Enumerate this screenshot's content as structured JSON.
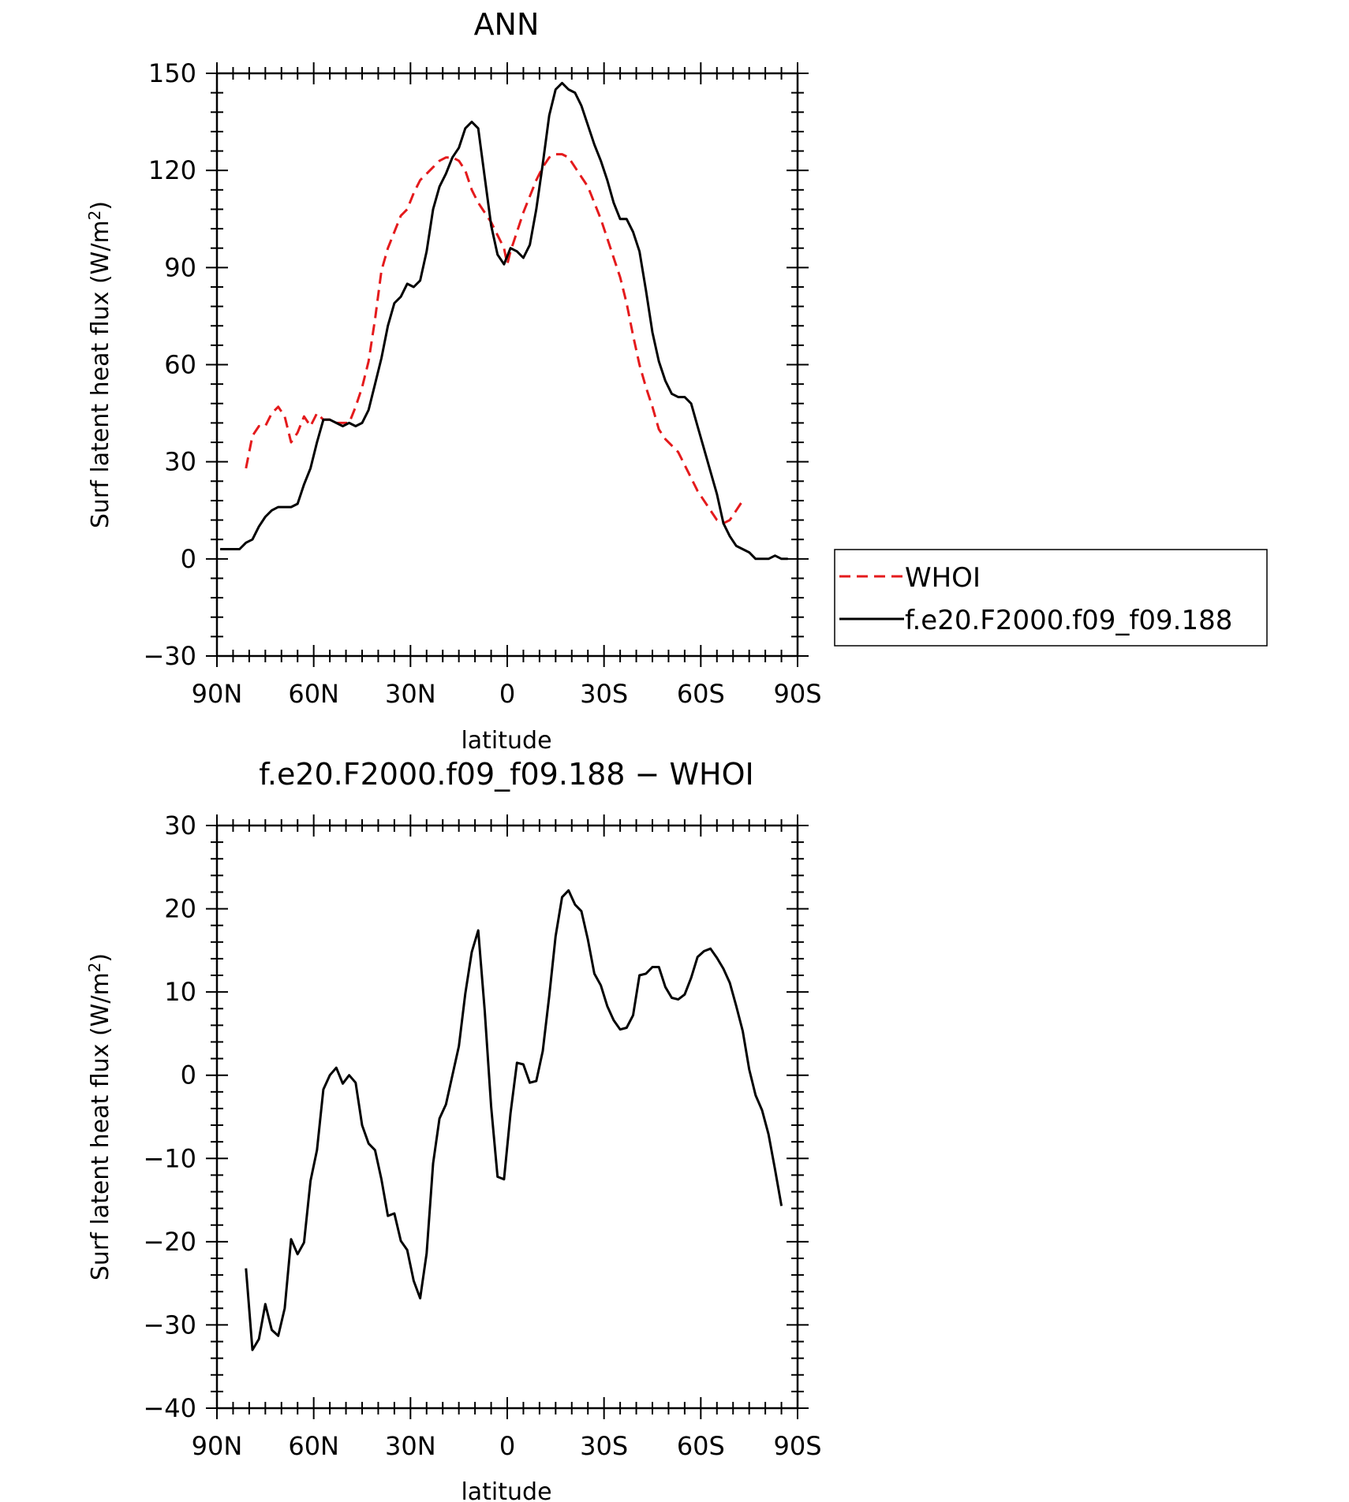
{
  "chart_data": [
    {
      "type": "line",
      "title": "ANN",
      "xlabel": "latitude",
      "ylabel": "Surf latent heat flux (W/m²)",
      "ylabel_main": "Surf latent heat flux (W/m",
      "ylabel_sup": "2",
      "ylabel_end": ")",
      "xlim": [
        90,
        -90
      ],
      "ylim": [
        -30,
        150
      ],
      "xticks": [
        90,
        60,
        30,
        0,
        -30,
        -60,
        -90
      ],
      "xtick_labels": [
        "90N",
        "60N",
        "30N",
        "0",
        "30S",
        "60S",
        "90S"
      ],
      "yticks": [
        -30,
        0,
        30,
        60,
        90,
        120,
        150
      ],
      "ytick_labels": [
        "−30",
        "0",
        "30",
        "60",
        "90",
        "120",
        "150"
      ],
      "legend": {
        "position": "right"
      },
      "series": [
        {
          "name": "WHOI",
          "color": "#e41a1c",
          "dash": "dashed",
          "points": [
            [
              81,
              28
            ],
            [
              79,
              38
            ],
            [
              77,
              41
            ],
            [
              75,
              41
            ],
            [
              73,
              45
            ],
            [
              71,
              47
            ],
            [
              69,
              44
            ],
            [
              67,
              36
            ],
            [
              65,
              39
            ],
            [
              63,
              44
            ],
            [
              61,
              41
            ],
            [
              59,
              45
            ],
            [
              57,
              43
            ],
            [
              55,
              43
            ],
            [
              53,
              42
            ],
            [
              51,
              42
            ],
            [
              49,
              42
            ],
            [
              47,
              47
            ],
            [
              45,
              53
            ],
            [
              43,
              61
            ],
            [
              41,
              74
            ],
            [
              39,
              89
            ],
            [
              37,
              96
            ],
            [
              35,
              101
            ],
            [
              33,
              106
            ],
            [
              31,
              108
            ],
            [
              29,
              113
            ],
            [
              27,
              117
            ],
            [
              25,
              119
            ],
            [
              23,
              121
            ],
            [
              21,
              123
            ],
            [
              19,
              124
            ],
            [
              17,
              124
            ],
            [
              15,
              123
            ],
            [
              13,
              120
            ],
            [
              11,
              114
            ],
            [
              9,
              110
            ],
            [
              7,
              107
            ],
            [
              5,
              104
            ],
            [
              3,
              100
            ],
            [
              1,
              96
            ],
            [
              0,
              91
            ],
            [
              -1,
              95
            ],
            [
              -3,
              101
            ],
            [
              -5,
              107
            ],
            [
              -7,
              112
            ],
            [
              -9,
              117
            ],
            [
              -11,
              121
            ],
            [
              -13,
              124
            ],
            [
              -15,
              125
            ],
            [
              -17,
              125
            ],
            [
              -19,
              124
            ],
            [
              -21,
              121
            ],
            [
              -23,
              118
            ],
            [
              -25,
              115
            ],
            [
              -27,
              110
            ],
            [
              -29,
              105
            ],
            [
              -31,
              99
            ],
            [
              -33,
              93
            ],
            [
              -35,
              87
            ],
            [
              -37,
              79
            ],
            [
              -39,
              69
            ],
            [
              -41,
              60
            ],
            [
              -43,
              53
            ],
            [
              -45,
              47
            ],
            [
              -47,
              40
            ],
            [
              -49,
              37
            ],
            [
              -51,
              35
            ],
            [
              -53,
              33
            ],
            [
              -55,
              29
            ],
            [
              -57,
              25
            ],
            [
              -59,
              21
            ],
            [
              -61,
              18
            ],
            [
              -63,
              15
            ],
            [
              -65,
              12
            ],
            [
              -67,
              11
            ],
            [
              -69,
              12
            ],
            [
              -71,
              15
            ],
            [
              -73,
              18
            ]
          ]
        },
        {
          "name": "f.e20.F2000.f09_f09.188",
          "color": "#000000",
          "dash": "solid",
          "points": [
            [
              89,
              3
            ],
            [
              87,
              3
            ],
            [
              85,
              3
            ],
            [
              83,
              3
            ],
            [
              81,
              5
            ],
            [
              79,
              6
            ],
            [
              77,
              10
            ],
            [
              75,
              13
            ],
            [
              73,
              15
            ],
            [
              71,
              16
            ],
            [
              69,
              16
            ],
            [
              67,
              16
            ],
            [
              65,
              17
            ],
            [
              63,
              23
            ],
            [
              61,
              28
            ],
            [
              59,
              36
            ],
            [
              57,
              43
            ],
            [
              55,
              43
            ],
            [
              53,
              42
            ],
            [
              51,
              41
            ],
            [
              49,
              42
            ],
            [
              47,
              41
            ],
            [
              45,
              42
            ],
            [
              43,
              46
            ],
            [
              41,
              54
            ],
            [
              39,
              62
            ],
            [
              37,
              72
            ],
            [
              35,
              79
            ],
            [
              33,
              81
            ],
            [
              31,
              85
            ],
            [
              29,
              84
            ],
            [
              27,
              86
            ],
            [
              25,
              95
            ],
            [
              23,
              108
            ],
            [
              21,
              115
            ],
            [
              19,
              119
            ],
            [
              17,
              124
            ],
            [
              15,
              127
            ],
            [
              13,
              133
            ],
            [
              11,
              135
            ],
            [
              9,
              133
            ],
            [
              7,
              118
            ],
            [
              5,
              103
            ],
            [
              3,
              94
            ],
            [
              1,
              91
            ],
            [
              -1,
              96
            ],
            [
              -3,
              95
            ],
            [
              -5,
              93
            ],
            [
              -7,
              97
            ],
            [
              -9,
              108
            ],
            [
              -11,
              122
            ],
            [
              -13,
              137
            ],
            [
              -15,
              145
            ],
            [
              -17,
              147
            ],
            [
              -19,
              145
            ],
            [
              -21,
              144
            ],
            [
              -23,
              140
            ],
            [
              -25,
              134
            ],
            [
              -27,
              128
            ],
            [
              -29,
              123
            ],
            [
              -31,
              117
            ],
            [
              -33,
              110
            ],
            [
              -35,
              105
            ],
            [
              -37,
              105
            ],
            [
              -39,
              101
            ],
            [
              -41,
              95
            ],
            [
              -43,
              83
            ],
            [
              -45,
              70
            ],
            [
              -47,
              61
            ],
            [
              -49,
              55
            ],
            [
              -51,
              51
            ],
            [
              -53,
              50
            ],
            [
              -55,
              50
            ],
            [
              -57,
              48
            ],
            [
              -59,
              41
            ],
            [
              -61,
              34
            ],
            [
              -63,
              27
            ],
            [
              -65,
              20
            ],
            [
              -67,
              11
            ],
            [
              -69,
              7
            ],
            [
              -71,
              4
            ],
            [
              -73,
              3
            ],
            [
              -75,
              2
            ],
            [
              -77,
              0
            ],
            [
              -79,
              0
            ],
            [
              -81,
              0
            ],
            [
              -83,
              1
            ],
            [
              -85,
              0
            ],
            [
              -87,
              0
            ]
          ]
        }
      ]
    },
    {
      "type": "line",
      "title": "f.e20.F2000.f09_f09.188 − WHOI",
      "xlabel": "latitude",
      "ylabel": "Surf latent heat flux (W/m²)",
      "ylabel_main": "Surf latent heat flux (W/m",
      "ylabel_sup": "2",
      "ylabel_end": ")",
      "xlim": [
        90,
        -90
      ],
      "ylim": [
        -40,
        30
      ],
      "xticks": [
        90,
        60,
        30,
        0,
        -30,
        -60,
        -90
      ],
      "xtick_labels": [
        "90N",
        "60N",
        "30N",
        "0",
        "30S",
        "60S",
        "90S"
      ],
      "yticks": [
        -40,
        -30,
        -20,
        -10,
        0,
        10,
        20,
        30
      ],
      "ytick_labels": [
        "−40",
        "−30",
        "−20",
        "−10",
        "0",
        "10",
        "20",
        "30"
      ],
      "series": [
        {
          "color": "#000000",
          "dash": "solid",
          "points": [
            [
              81,
              -23.2
            ],
            [
              79,
              -33
            ],
            [
              77,
              -31.7
            ],
            [
              75,
              -27.5
            ],
            [
              73,
              -30.6
            ],
            [
              71,
              -31.3
            ],
            [
              69,
              -28
            ],
            [
              67,
              -19.7
            ],
            [
              65,
              -21.5
            ],
            [
              63,
              -20.1
            ],
            [
              61,
              -12.7
            ],
            [
              59,
              -9
            ],
            [
              57,
              -1.7
            ],
            [
              55,
              0
            ],
            [
              53,
              0.9
            ],
            [
              51,
              -1
            ],
            [
              49,
              0
            ],
            [
              47,
              -0.9
            ],
            [
              45,
              -6
            ],
            [
              43,
              -8.2
            ],
            [
              41,
              -9
            ],
            [
              39,
              -12.5
            ],
            [
              37,
              -16.9
            ],
            [
              35,
              -16.6
            ],
            [
              33,
              -19.9
            ],
            [
              31,
              -21
            ],
            [
              29,
              -24.7
            ],
            [
              27,
              -26.8
            ],
            [
              25,
              -21.4
            ],
            [
              23,
              -10.6
            ],
            [
              21,
              -5.2
            ],
            [
              19,
              -3.5
            ],
            [
              17,
              0
            ],
            [
              15,
              3.5
            ],
            [
              13,
              9.8
            ],
            [
              11,
              14.8
            ],
            [
              9,
              17.4
            ],
            [
              7,
              7.8
            ],
            [
              5,
              -3.8
            ],
            [
              3,
              -12.2
            ],
            [
              1,
              -12.5
            ],
            [
              -1,
              -4.6
            ],
            [
              -3,
              1.5
            ],
            [
              -5,
              1.3
            ],
            [
              -7,
              -0.9
            ],
            [
              -9,
              -0.7
            ],
            [
              -11,
              2.9
            ],
            [
              -13,
              9.5
            ],
            [
              -15,
              16.7
            ],
            [
              -17,
              21.4
            ],
            [
              -19,
              22.2
            ],
            [
              -21,
              20.5
            ],
            [
              -23,
              19.7
            ],
            [
              -25,
              16.3
            ],
            [
              -27,
              12.2
            ],
            [
              -29,
              10.8
            ],
            [
              -31,
              8.3
            ],
            [
              -33,
              6.6
            ],
            [
              -35,
              5.5
            ],
            [
              -37,
              5.7
            ],
            [
              -39,
              7.2
            ],
            [
              -41,
              12
            ],
            [
              -43,
              12.2
            ],
            [
              -45,
              13
            ],
            [
              -47,
              13
            ],
            [
              -49,
              10.6
            ],
            [
              -51,
              9.3
            ],
            [
              -53,
              9.1
            ],
            [
              -55,
              9.7
            ],
            [
              -57,
              11.7
            ],
            [
              -59,
              14.2
            ],
            [
              -61,
              14.9
            ],
            [
              -63,
              15.2
            ],
            [
              -65,
              14.1
            ],
            [
              -67,
              12.8
            ],
            [
              -69,
              11.1
            ],
            [
              -71,
              8.3
            ],
            [
              -73,
              5.3
            ],
            [
              -75,
              0.7
            ],
            [
              -77,
              -2.4
            ],
            [
              -79,
              -4.2
            ],
            [
              -81,
              -7.1
            ],
            [
              -83,
              -11.3
            ],
            [
              -85,
              -15.7
            ]
          ]
        }
      ]
    }
  ]
}
